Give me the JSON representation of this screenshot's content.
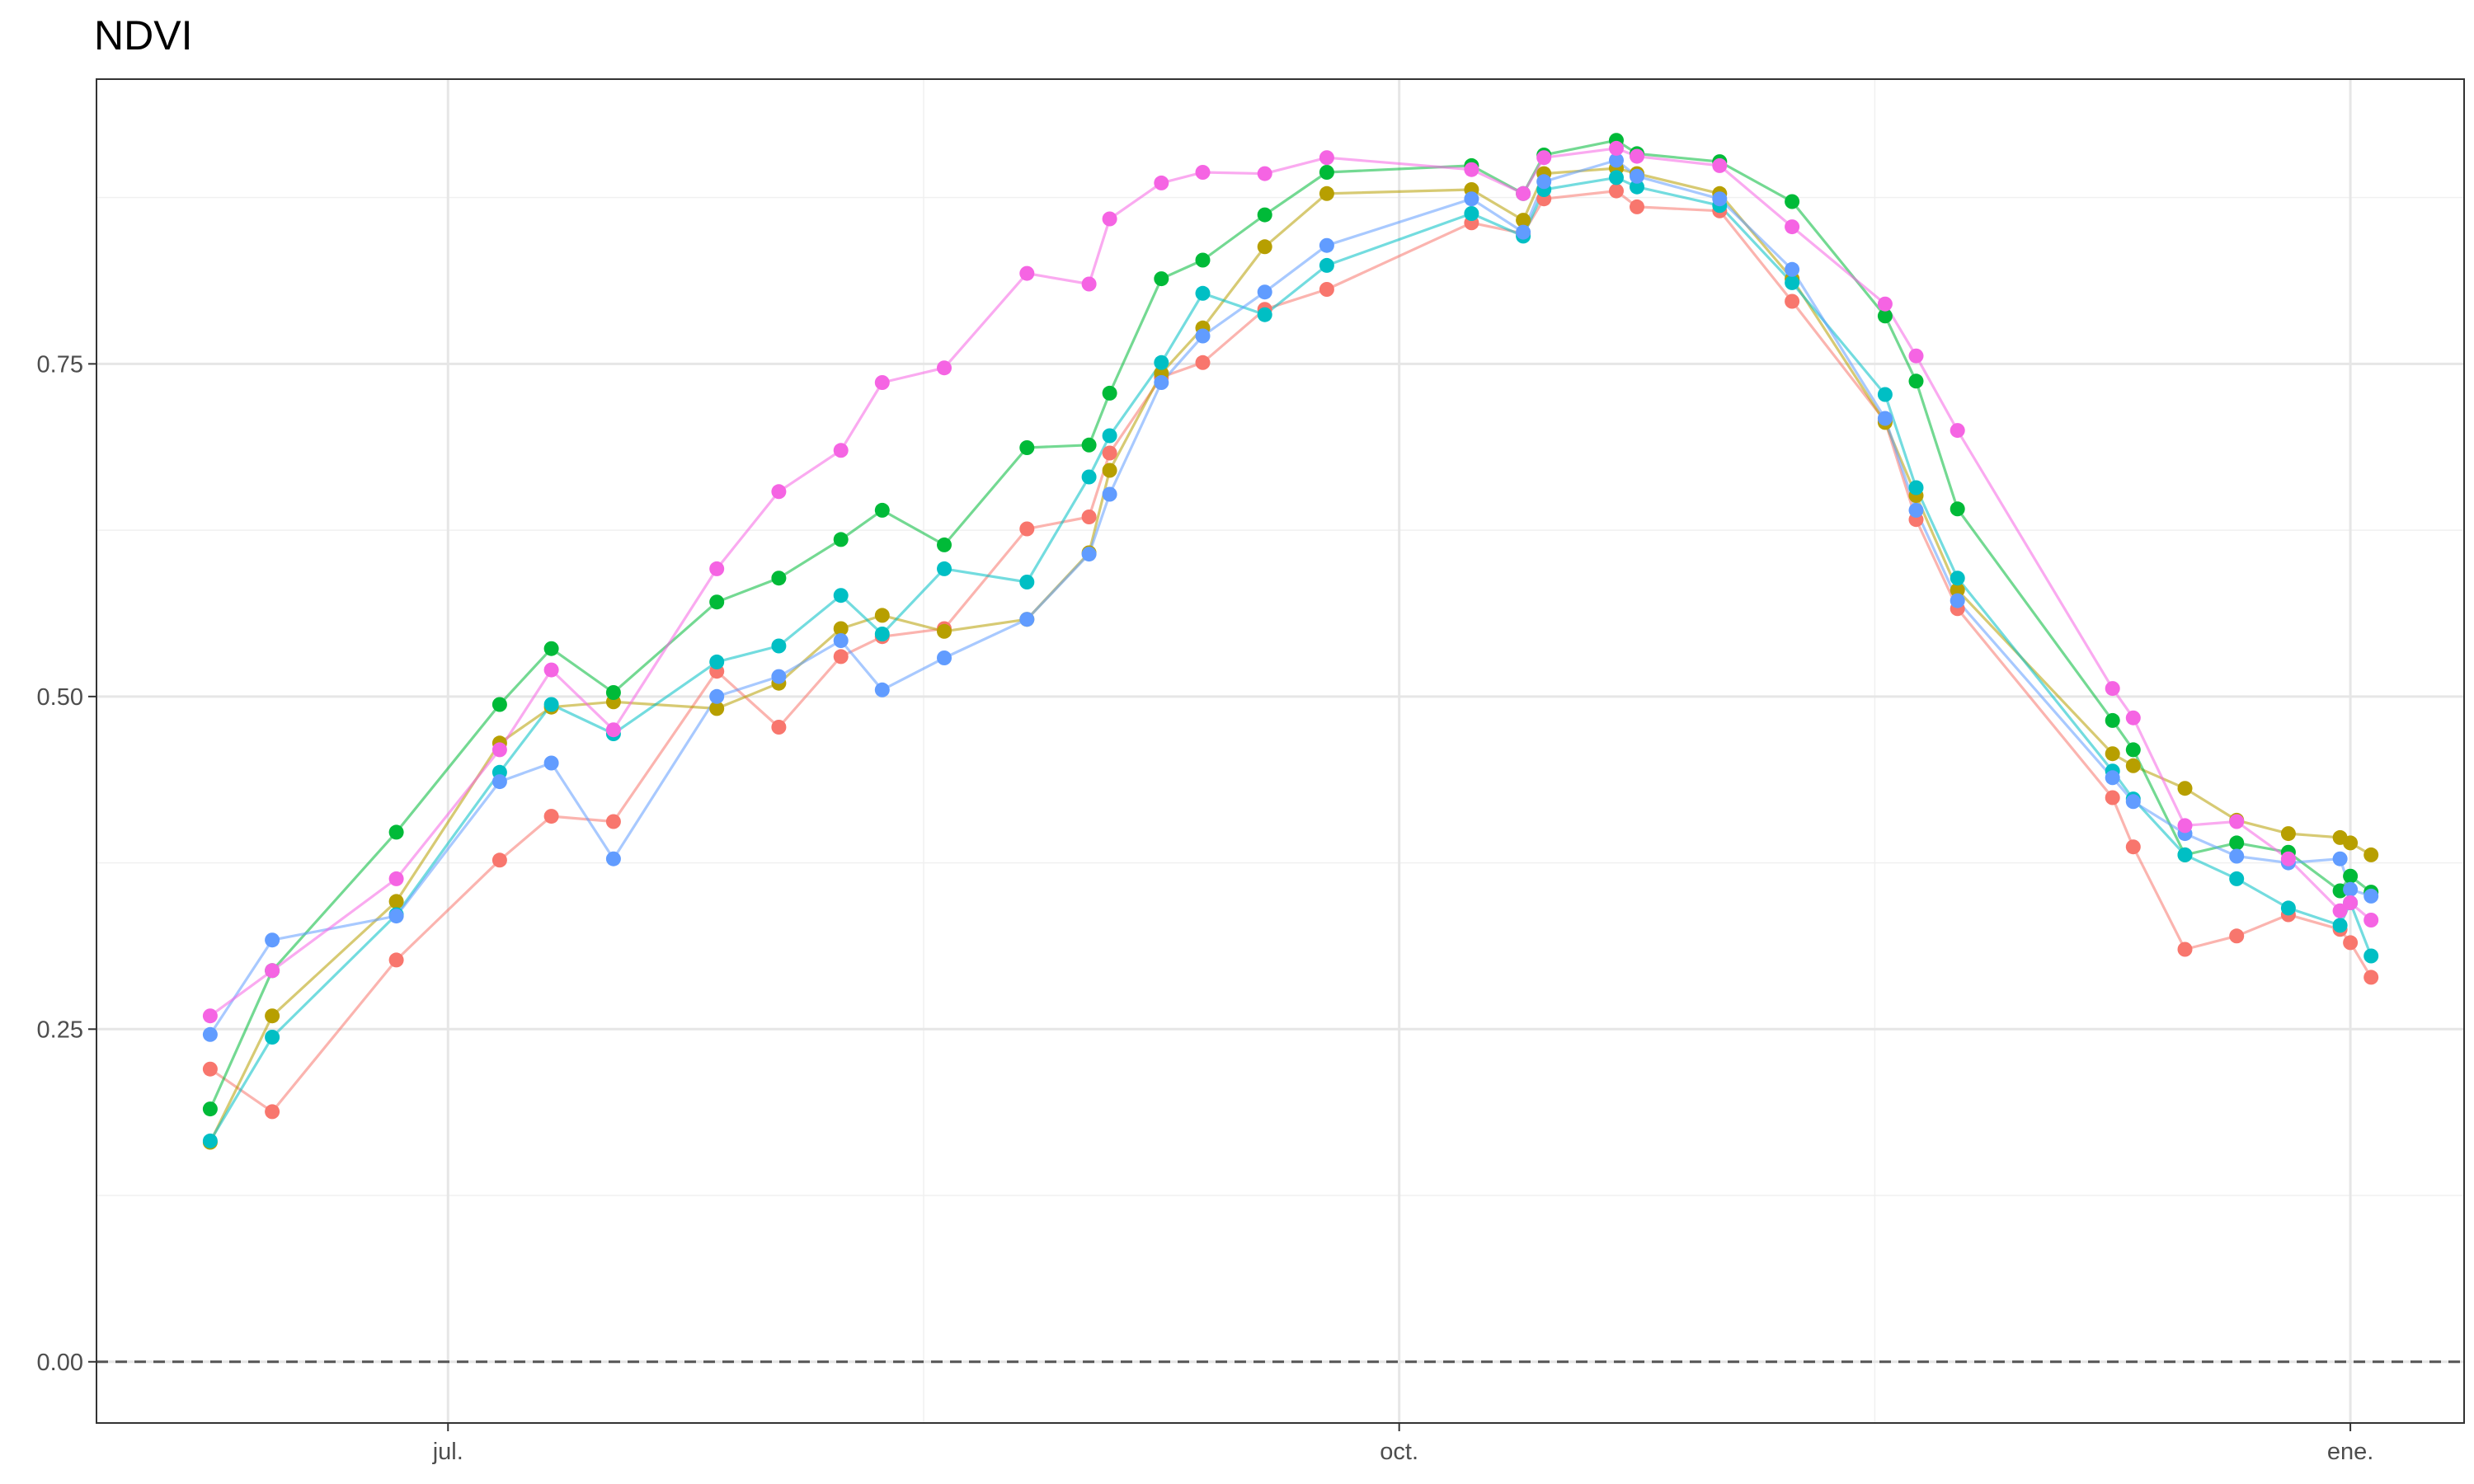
{
  "chart_data": {
    "type": "line",
    "title": "NDVI",
    "xlabel": "",
    "ylabel": "",
    "x_axis": {
      "type": "date",
      "ticks": [
        {
          "date": "2023-07-01",
          "label": "jul."
        },
        {
          "date": "2023-10-01",
          "label": "oct."
        },
        {
          "date": "2024-01-01",
          "label": "ene."
        }
      ],
      "xlim": [
        "2023-05-28",
        "2024-01-12"
      ]
    },
    "y_axis": {
      "ticks": [
        0.0,
        0.25,
        0.5,
        0.75
      ],
      "tick_labels": [
        "0.00",
        "0.25",
        "0.50",
        "0.75"
      ],
      "ylim": [
        -0.046,
        0.964
      ]
    },
    "reference_line": {
      "y": 0.0,
      "style": "dashed",
      "color": "#555555"
    },
    "grid": true,
    "legend": "none",
    "series": [
      {
        "color": "#F8766D",
        "points": [
          [
            "2023-06-08",
            0.22
          ],
          [
            "2023-06-14",
            0.188
          ],
          [
            "2023-06-26",
            0.302
          ],
          [
            "2023-07-06",
            0.377
          ],
          [
            "2023-07-11",
            0.41
          ],
          [
            "2023-07-17",
            0.406
          ],
          [
            "2023-07-27",
            0.519
          ],
          [
            "2023-08-02",
            0.477
          ],
          [
            "2023-08-08",
            0.53
          ],
          [
            "2023-08-12",
            0.545
          ],
          [
            "2023-08-18",
            0.551
          ],
          [
            "2023-08-26",
            0.626
          ],
          [
            "2023-09-01",
            0.635
          ],
          [
            "2023-09-03",
            0.683
          ],
          [
            "2023-09-08",
            0.74
          ],
          [
            "2023-09-12",
            0.751
          ],
          [
            "2023-09-18",
            0.791
          ],
          [
            "2023-09-24",
            0.806
          ],
          [
            "2023-10-08",
            0.856
          ],
          [
            "2023-10-13",
            0.848
          ],
          [
            "2023-10-15",
            0.874
          ],
          [
            "2023-10-22",
            0.88
          ],
          [
            "2023-10-24",
            0.868
          ],
          [
            "2023-11-01",
            0.865
          ],
          [
            "2023-11-08",
            0.797
          ],
          [
            "2023-11-17",
            0.707
          ],
          [
            "2023-11-20",
            0.633
          ],
          [
            "2023-11-24",
            0.566
          ],
          [
            "2023-12-09",
            0.424
          ],
          [
            "2023-12-11",
            0.387
          ],
          [
            "2023-12-16",
            0.31
          ],
          [
            "2023-12-21",
            0.32
          ],
          [
            "2023-12-26",
            0.336
          ],
          [
            "2023-12-31",
            0.325
          ],
          [
            "2024-01-01",
            0.315
          ],
          [
            "2024-01-03",
            0.289
          ]
        ]
      },
      {
        "color": "#B79F00",
        "points": [
          [
            "2023-06-08",
            0.165
          ],
          [
            "2023-06-14",
            0.26
          ],
          [
            "2023-06-26",
            0.346
          ],
          [
            "2023-07-06",
            0.465
          ],
          [
            "2023-07-11",
            0.492
          ],
          [
            "2023-07-17",
            0.496
          ],
          [
            "2023-07-27",
            0.491
          ],
          [
            "2023-08-02",
            0.51
          ],
          [
            "2023-08-08",
            0.551
          ],
          [
            "2023-08-12",
            0.561
          ],
          [
            "2023-08-18",
            0.549
          ],
          [
            "2023-08-26",
            0.558
          ],
          [
            "2023-09-01",
            0.608
          ],
          [
            "2023-09-03",
            0.67
          ],
          [
            "2023-09-08",
            0.743
          ],
          [
            "2023-09-12",
            0.777
          ],
          [
            "2023-09-18",
            0.838
          ],
          [
            "2023-09-24",
            0.878
          ],
          [
            "2023-10-08",
            0.881
          ],
          [
            "2023-10-13",
            0.858
          ],
          [
            "2023-10-15",
            0.893
          ],
          [
            "2023-10-22",
            0.897
          ],
          [
            "2023-10-24",
            0.893
          ],
          [
            "2023-11-01",
            0.878
          ],
          [
            "2023-11-08",
            0.814
          ],
          [
            "2023-11-17",
            0.706
          ],
          [
            "2023-11-20",
            0.651
          ],
          [
            "2023-11-24",
            0.58
          ],
          [
            "2023-12-09",
            0.457
          ],
          [
            "2023-12-11",
            0.448
          ],
          [
            "2023-12-16",
            0.431
          ],
          [
            "2023-12-21",
            0.407
          ],
          [
            "2023-12-26",
            0.397
          ],
          [
            "2023-12-31",
            0.394
          ],
          [
            "2024-01-01",
            0.39
          ],
          [
            "2024-01-03",
            0.381
          ]
        ]
      },
      {
        "color": "#00BA38",
        "points": [
          [
            "2023-06-08",
            0.19
          ],
          [
            "2023-06-14",
            0.294
          ],
          [
            "2023-06-26",
            0.398
          ],
          [
            "2023-07-06",
            0.494
          ],
          [
            "2023-07-11",
            0.536
          ],
          [
            "2023-07-17",
            0.503
          ],
          [
            "2023-07-27",
            0.571
          ],
          [
            "2023-08-02",
            0.589
          ],
          [
            "2023-08-08",
            0.618
          ],
          [
            "2023-08-12",
            0.64
          ],
          [
            "2023-08-18",
            0.614
          ],
          [
            "2023-08-26",
            0.687
          ],
          [
            "2023-09-01",
            0.689
          ],
          [
            "2023-09-03",
            0.728
          ],
          [
            "2023-09-08",
            0.814
          ],
          [
            "2023-09-12",
            0.828
          ],
          [
            "2023-09-18",
            0.862
          ],
          [
            "2023-09-24",
            0.894
          ],
          [
            "2023-10-08",
            0.899
          ],
          [
            "2023-10-13",
            0.878
          ],
          [
            "2023-10-15",
            0.907
          ],
          [
            "2023-10-22",
            0.918
          ],
          [
            "2023-10-24",
            0.908
          ],
          [
            "2023-11-01",
            0.902
          ],
          [
            "2023-11-08",
            0.872
          ],
          [
            "2023-11-17",
            0.786
          ],
          [
            "2023-11-20",
            0.737
          ],
          [
            "2023-11-24",
            0.641
          ],
          [
            "2023-12-09",
            0.482
          ],
          [
            "2023-12-11",
            0.46
          ],
          [
            "2023-12-16",
            0.381
          ],
          [
            "2023-12-21",
            0.39
          ],
          [
            "2023-12-26",
            0.383
          ],
          [
            "2023-12-31",
            0.354
          ],
          [
            "2024-01-01",
            0.365
          ],
          [
            "2024-01-03",
            0.353
          ]
        ]
      },
      {
        "color": "#00BFC4",
        "points": [
          [
            "2023-06-08",
            0.166
          ],
          [
            "2023-06-14",
            0.244
          ],
          [
            "2023-06-26",
            0.336
          ],
          [
            "2023-07-06",
            0.443
          ],
          [
            "2023-07-11",
            0.494
          ],
          [
            "2023-07-17",
            0.472
          ],
          [
            "2023-07-27",
            0.526
          ],
          [
            "2023-08-02",
            0.538
          ],
          [
            "2023-08-08",
            0.576
          ],
          [
            "2023-08-12",
            0.547
          ],
          [
            "2023-08-18",
            0.596
          ],
          [
            "2023-08-26",
            0.586
          ],
          [
            "2023-09-01",
            0.665
          ],
          [
            "2023-09-03",
            0.696
          ],
          [
            "2023-09-08",
            0.751
          ],
          [
            "2023-09-12",
            0.803
          ],
          [
            "2023-09-18",
            0.787
          ],
          [
            "2023-09-24",
            0.824
          ],
          [
            "2023-10-08",
            0.863
          ],
          [
            "2023-10-13",
            0.846
          ],
          [
            "2023-10-15",
            0.881
          ],
          [
            "2023-10-22",
            0.89
          ],
          [
            "2023-10-24",
            0.883
          ],
          [
            "2023-11-01",
            0.869
          ],
          [
            "2023-11-08",
            0.811
          ],
          [
            "2023-11-17",
            0.727
          ],
          [
            "2023-11-20",
            0.657
          ],
          [
            "2023-11-24",
            0.589
          ],
          [
            "2023-12-09",
            0.444
          ],
          [
            "2023-12-11",
            0.423
          ],
          [
            "2023-12-16",
            0.381
          ],
          [
            "2023-12-21",
            0.363
          ],
          [
            "2023-12-26",
            0.341
          ],
          [
            "2023-12-31",
            0.328
          ],
          [
            "2024-01-01",
            0.345
          ],
          [
            "2024-01-03",
            0.305
          ]
        ]
      },
      {
        "color": "#619CFF",
        "points": [
          [
            "2023-06-08",
            0.246
          ],
          [
            "2023-06-14",
            0.317
          ],
          [
            "2023-06-26",
            0.335
          ],
          [
            "2023-07-06",
            0.436
          ],
          [
            "2023-07-11",
            0.45
          ],
          [
            "2023-07-17",
            0.378
          ],
          [
            "2023-07-27",
            0.5
          ],
          [
            "2023-08-02",
            0.515
          ],
          [
            "2023-08-08",
            0.542
          ],
          [
            "2023-08-12",
            0.505
          ],
          [
            "2023-08-18",
            0.529
          ],
          [
            "2023-08-26",
            0.558
          ],
          [
            "2023-09-01",
            0.607
          ],
          [
            "2023-09-03",
            0.652
          ],
          [
            "2023-09-08",
            0.736
          ],
          [
            "2023-09-12",
            0.771
          ],
          [
            "2023-09-18",
            0.804
          ],
          [
            "2023-09-24",
            0.839
          ],
          [
            "2023-10-08",
            0.874
          ],
          [
            "2023-10-13",
            0.849
          ],
          [
            "2023-10-15",
            0.887
          ],
          [
            "2023-10-22",
            0.903
          ],
          [
            "2023-10-24",
            0.891
          ],
          [
            "2023-11-01",
            0.874
          ],
          [
            "2023-11-08",
            0.821
          ],
          [
            "2023-11-17",
            0.709
          ],
          [
            "2023-11-20",
            0.64
          ],
          [
            "2023-11-24",
            0.572
          ],
          [
            "2023-12-09",
            0.439
          ],
          [
            "2023-12-11",
            0.421
          ],
          [
            "2023-12-16",
            0.397
          ],
          [
            "2023-12-21",
            0.38
          ],
          [
            "2023-12-26",
            0.375
          ],
          [
            "2023-12-31",
            0.378
          ],
          [
            "2024-01-01",
            0.355
          ],
          [
            "2024-01-03",
            0.35
          ]
        ]
      },
      {
        "color": "#F564E3",
        "points": [
          [
            "2023-06-08",
            0.26
          ],
          [
            "2023-06-14",
            0.294
          ],
          [
            "2023-06-26",
            0.363
          ],
          [
            "2023-07-06",
            0.46
          ],
          [
            "2023-07-11",
            0.52
          ],
          [
            "2023-07-17",
            0.475
          ],
          [
            "2023-07-27",
            0.596
          ],
          [
            "2023-08-02",
            0.654
          ],
          [
            "2023-08-08",
            0.685
          ],
          [
            "2023-08-12",
            0.736
          ],
          [
            "2023-08-18",
            0.747
          ],
          [
            "2023-08-26",
            0.818
          ],
          [
            "2023-09-01",
            0.81
          ],
          [
            "2023-09-03",
            0.859
          ],
          [
            "2023-09-08",
            0.886
          ],
          [
            "2023-09-12",
            0.894
          ],
          [
            "2023-09-18",
            0.893
          ],
          [
            "2023-09-24",
            0.905
          ],
          [
            "2023-10-08",
            0.896
          ],
          [
            "2023-10-13",
            0.878
          ],
          [
            "2023-10-15",
            0.905
          ],
          [
            "2023-10-22",
            0.912
          ],
          [
            "2023-10-24",
            0.906
          ],
          [
            "2023-11-01",
            0.899
          ],
          [
            "2023-11-08",
            0.853
          ],
          [
            "2023-11-17",
            0.795
          ],
          [
            "2023-11-20",
            0.756
          ],
          [
            "2023-11-24",
            0.7
          ],
          [
            "2023-12-09",
            0.506
          ],
          [
            "2023-12-11",
            0.484
          ],
          [
            "2023-12-16",
            0.403
          ],
          [
            "2023-12-21",
            0.406
          ],
          [
            "2023-12-26",
            0.378
          ],
          [
            "2023-12-31",
            0.339
          ],
          [
            "2024-01-01",
            0.345
          ],
          [
            "2024-01-03",
            0.332
          ]
        ]
      }
    ]
  }
}
